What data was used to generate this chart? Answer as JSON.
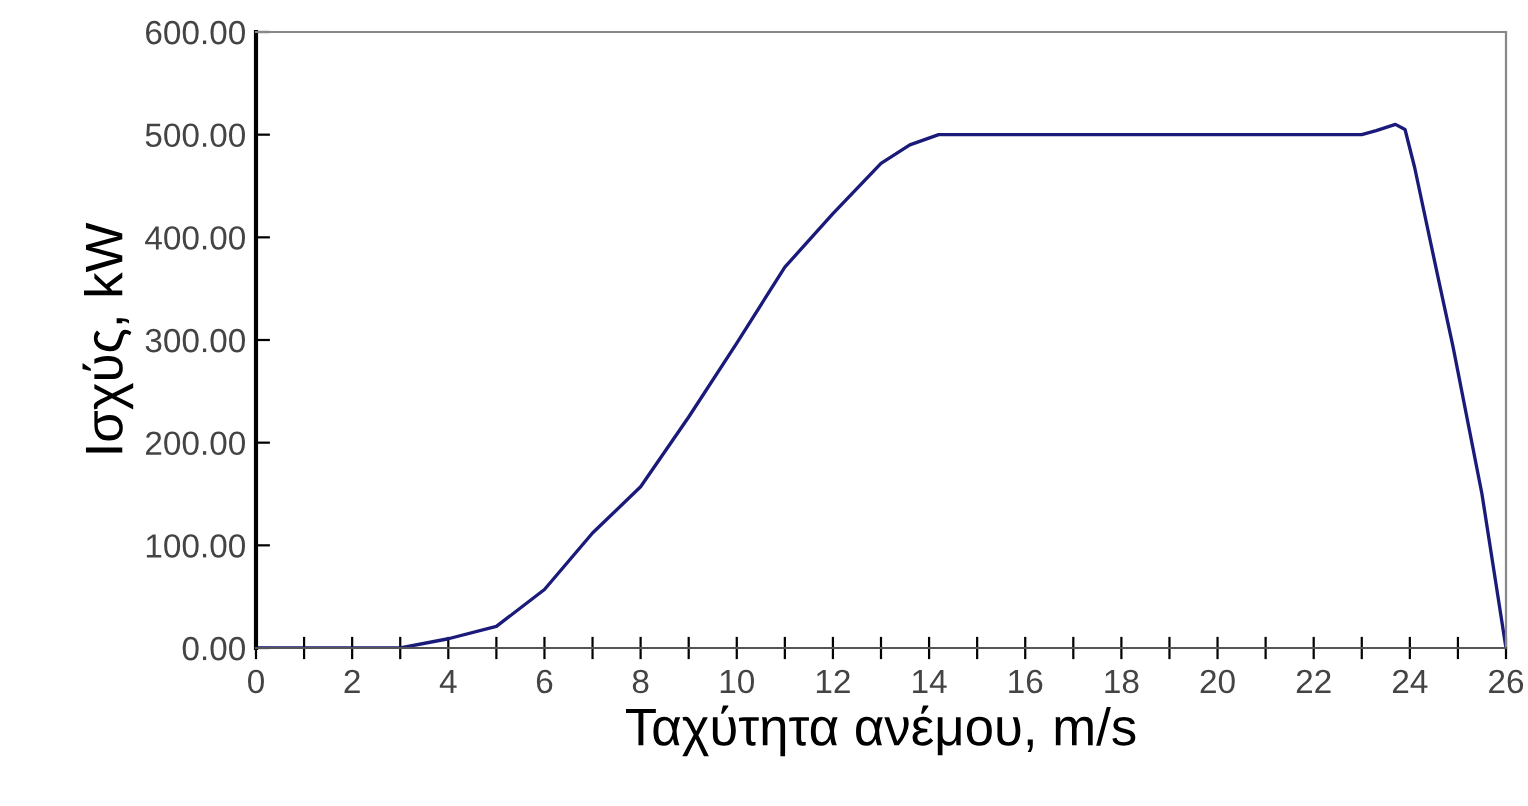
{
  "chart_data": {
    "type": "line",
    "xlabel": "Ταχύτητα ανέμου, m/s",
    "ylabel": "Ισχύς, kW",
    "series": [
      {
        "color": "#1a1a7a",
        "x": [
          0,
          3,
          4,
          5,
          6,
          7,
          8,
          9,
          10,
          11,
          12,
          13,
          13.6,
          14.2,
          16,
          18,
          20,
          22,
          23,
          23.3,
          23.7,
          23.9,
          24.1,
          24.6,
          24.9,
          25.5,
          26
        ],
        "values": [
          0,
          0,
          9,
          21,
          57,
          112,
          157,
          225,
          297,
          371,
          423,
          472,
          490,
          500,
          500,
          500,
          500,
          500,
          500,
          504,
          510,
          505,
          468,
          358,
          293,
          150,
          0
        ]
      }
    ],
    "xlim": [
      0,
      26
    ],
    "xticks": [
      0,
      {
        "value": 1,
        "label": null
      },
      2,
      {
        "value": 3,
        "label": null
      },
      4,
      {
        "value": 5,
        "label": null
      },
      6,
      {
        "value": 7,
        "label": null
      },
      8,
      {
        "value": 9,
        "label": null
      },
      10,
      {
        "value": 11,
        "label": null
      },
      12,
      {
        "value": 13,
        "label": null
      },
      14,
      {
        "value": 15,
        "label": null
      },
      16,
      {
        "value": 17,
        "label": null
      },
      18,
      {
        "value": 19,
        "label": null
      },
      20,
      {
        "value": 21,
        "label": null
      },
      22,
      {
        "value": 23,
        "label": null
      },
      24,
      {
        "value": 25,
        "label": null
      },
      26
    ],
    "ylim": [
      0,
      600
    ],
    "yticks": [
      {
        "value": 0,
        "label": "0.00"
      },
      {
        "value": 100,
        "label": "100.00"
      },
      {
        "value": 200,
        "label": "200.00"
      },
      {
        "value": 300,
        "label": "300.00"
      },
      {
        "value": 400,
        "label": "400.00"
      },
      {
        "value": 500,
        "label": "500.00"
      },
      {
        "value": 600,
        "label": "600.00"
      }
    ],
    "grid": false,
    "legend": false,
    "marker": "none",
    "line_style": "solid"
  }
}
